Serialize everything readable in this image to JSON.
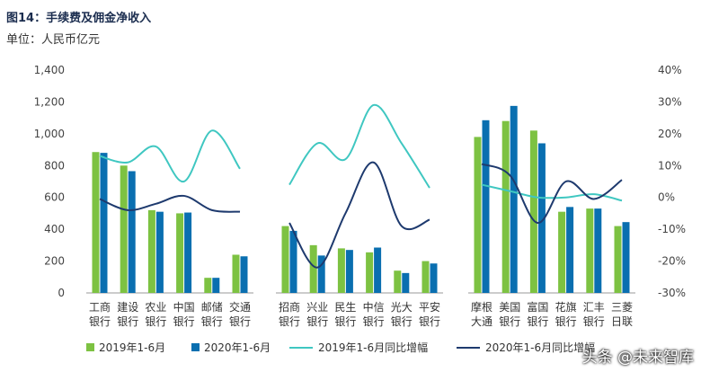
{
  "title": "图14：手续费及佣金净收入",
  "subtitle": "单位：人民币亿元",
  "watermark": "头条 @未来智库",
  "colors": {
    "bar2019": "#7dc242",
    "bar2020": "#0a6fb0",
    "line2019": "#3fc7c1",
    "line2020": "#1e3a6e"
  },
  "chart_data": {
    "type": "bar",
    "groups": [
      {
        "name": "group-1",
        "categories": [
          [
            "工商",
            "银行"
          ],
          [
            "建设",
            "银行"
          ],
          [
            "农业",
            "银行"
          ],
          [
            "中国",
            "银行"
          ],
          [
            "邮储",
            "银行"
          ],
          [
            "交通",
            "银行"
          ]
        ]
      },
      {
        "name": "group-2",
        "categories": [
          [
            "招商",
            "银行"
          ],
          [
            "兴业",
            "银行"
          ],
          [
            "民生",
            "银行"
          ],
          [
            "中信",
            "银行"
          ],
          [
            "光大",
            "银行"
          ],
          [
            "平安",
            "银行"
          ]
        ]
      },
      {
        "name": "group-3",
        "categories": [
          [
            "摩根",
            "大通"
          ],
          [
            "美国",
            "银行"
          ],
          [
            "富国",
            "银行"
          ],
          [
            "花旗",
            "银行"
          ],
          [
            "汇丰",
            "银行"
          ],
          [
            "三菱",
            "日联"
          ]
        ]
      }
    ],
    "series": [
      {
        "name": "2019年1-6月",
        "type": "bar",
        "axis": "left",
        "values": [
          885,
          800,
          520,
          500,
          95,
          240,
          420,
          300,
          280,
          255,
          140,
          200,
          980,
          1080,
          1020,
          510,
          530,
          420
        ]
      },
      {
        "name": "2020年1-6月",
        "type": "bar",
        "axis": "left",
        "values": [
          880,
          765,
          510,
          505,
          95,
          230,
          390,
          235,
          270,
          285,
          125,
          185,
          1085,
          1175,
          940,
          540,
          530,
          445
        ]
      },
      {
        "name": "2019年1-6月同比增幅",
        "type": "line",
        "axis": "right",
        "unit": "%",
        "values": [
          13,
          11,
          16,
          5,
          21,
          9,
          4,
          17,
          12,
          29,
          17,
          3,
          4,
          2,
          0,
          0,
          1,
          -1
        ]
      },
      {
        "name": "2020年1-6月同比增幅",
        "type": "line",
        "axis": "right",
        "unit": "%",
        "values": [
          -0.5,
          -4,
          -2,
          0.5,
          -4,
          -4.5,
          -8,
          -22,
          -5,
          11,
          -9,
          -7,
          10.5,
          7,
          -8,
          5,
          -0.5,
          5.5
        ]
      }
    ],
    "y_left": {
      "min": 0,
      "max": 1400,
      "ticks": [
        "0",
        "200",
        "400",
        "600",
        "800",
        "1,000",
        "1,200",
        "1,400"
      ]
    },
    "y_right": {
      "min": -30,
      "max": 40,
      "ticks": [
        "-30%",
        "-20%",
        "-10%",
        "0%",
        "10%",
        "20%",
        "30%",
        "40%"
      ]
    },
    "grid": false,
    "legend_position": "bottom"
  }
}
